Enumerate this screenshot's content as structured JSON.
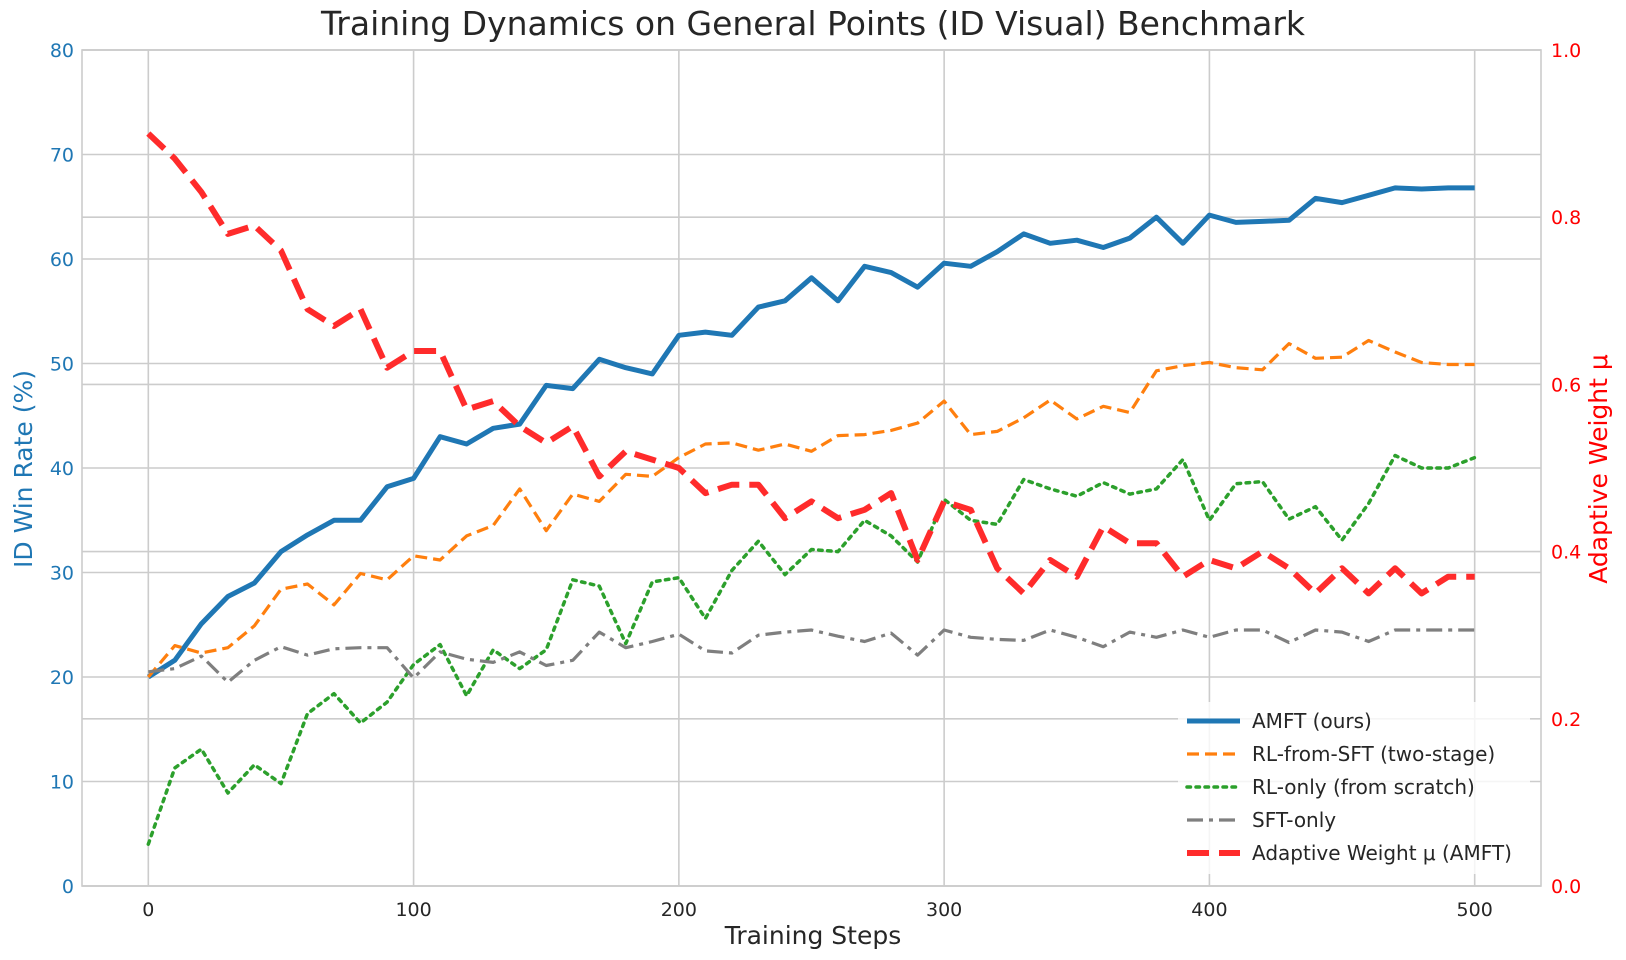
{
  "chart_data": {
    "type": "line",
    "title": "Training Dynamics on General Points (ID Visual) Benchmark",
    "xlabel": "Training Steps",
    "ylabel": "ID Win Rate (%)",
    "y2label": "Adaptive Weight μ",
    "xlim": [
      -25,
      525
    ],
    "ylim": [
      0,
      80
    ],
    "y2lim": [
      0.0,
      1.0
    ],
    "xticks": [
      "0",
      "100",
      "200",
      "300",
      "400",
      "500"
    ],
    "yticks": [
      "0",
      "10",
      "20",
      "30",
      "40",
      "50",
      "60",
      "70",
      "80"
    ],
    "y2ticks": [
      "0.0",
      "0.2",
      "0.4",
      "0.6",
      "0.8",
      "1.0"
    ],
    "grid": true,
    "legend_position": "lower-right",
    "x": [
      0,
      10,
      20,
      30,
      40,
      50,
      60,
      70,
      80,
      90,
      100,
      110,
      120,
      130,
      140,
      150,
      160,
      170,
      180,
      190,
      200,
      210,
      220,
      230,
      240,
      250,
      260,
      270,
      280,
      290,
      300,
      310,
      320,
      330,
      340,
      350,
      360,
      370,
      380,
      390,
      400,
      410,
      420,
      430,
      440,
      450,
      460,
      470,
      480,
      490,
      500
    ],
    "series": [
      {
        "name": "AMFT (ours)",
        "axis": "left",
        "color": "#1f77b4",
        "style": "solid",
        "values": [
          20.0,
          21.6,
          25.1,
          27.7,
          29.0,
          32.0,
          33.6,
          35.0,
          35.0,
          38.2,
          39.0,
          43.0,
          42.3,
          43.8,
          44.2,
          47.9,
          47.6,
          50.4,
          49.6,
          49.0,
          52.7,
          53.0,
          52.7,
          55.4,
          56.0,
          58.2,
          56.0,
          59.3,
          58.7,
          57.3,
          59.6,
          59.3,
          60.7,
          62.4,
          61.5,
          61.8,
          61.1,
          62.0,
          64.0,
          61.5,
          64.2,
          63.5,
          63.6,
          63.7,
          65.8,
          65.4,
          66.1,
          66.8,
          66.7,
          66.8,
          66.8
        ]
      },
      {
        "name": "RL-from-SFT (two-stage)",
        "axis": "left",
        "color": "#ff7f0e",
        "style": "dashed",
        "values": [
          20.0,
          23.0,
          22.3,
          22.8,
          24.9,
          28.4,
          28.9,
          26.9,
          29.9,
          29.3,
          31.6,
          31.2,
          33.5,
          34.5,
          38.0,
          34.0,
          37.5,
          36.8,
          39.4,
          39.2,
          41.0,
          42.3,
          42.4,
          41.7,
          42.3,
          41.6,
          43.1,
          43.2,
          43.6,
          44.3,
          46.4,
          43.2,
          43.5,
          44.8,
          46.5,
          44.7,
          45.9,
          45.3,
          49.3,
          49.8,
          50.1,
          49.6,
          49.4,
          51.9,
          50.5,
          50.6,
          52.2,
          51.1,
          50.1,
          49.9,
          49.9
        ]
      },
      {
        "name": "RL-only (from scratch)",
        "axis": "left",
        "color": "#2ca02c",
        "style": "dotted",
        "values": [
          4.0,
          11.3,
          13.1,
          8.9,
          11.6,
          9.8,
          16.5,
          18.4,
          15.6,
          17.6,
          21.2,
          23.1,
          18.2,
          22.6,
          20.8,
          22.6,
          29.3,
          28.7,
          23.2,
          29.1,
          29.5,
          25.6,
          30.2,
          33.0,
          29.8,
          32.2,
          32.0,
          35.0,
          33.5,
          31.0,
          37.0,
          35.0,
          34.6,
          38.9,
          38.0,
          37.3,
          38.6,
          37.5,
          38.0,
          40.8,
          35.0,
          38.5,
          38.7,
          35.1,
          36.3,
          33.1,
          36.6,
          41.2,
          40.0,
          40.0,
          41.0
        ]
      },
      {
        "name": "SFT-only",
        "axis": "left",
        "color": "#7f7f7f",
        "style": "dashdot",
        "values": [
          20.5,
          20.8,
          22.0,
          19.5,
          21.6,
          22.9,
          22.1,
          22.7,
          22.8,
          22.8,
          19.9,
          22.4,
          21.7,
          21.4,
          22.4,
          21.1,
          21.6,
          24.3,
          22.8,
          23.4,
          24.1,
          22.5,
          22.3,
          24.0,
          24.3,
          24.5,
          23.9,
          23.4,
          24.2,
          22.1,
          24.5,
          23.8,
          23.6,
          23.5,
          24.5,
          23.8,
          22.9,
          24.3,
          23.8,
          24.5,
          23.8,
          24.5,
          24.5,
          23.3,
          24.5,
          24.3,
          23.4,
          24.5,
          24.5,
          24.5,
          24.5
        ]
      },
      {
        "name": "Adaptive Weight μ (AMFT)",
        "axis": "right",
        "color": "#ff2b2b",
        "style": "dashed-thick",
        "values": [
          0.9,
          0.87,
          0.83,
          0.78,
          0.79,
          0.76,
          0.69,
          0.67,
          0.69,
          0.62,
          0.64,
          0.64,
          0.57,
          0.58,
          0.55,
          0.53,
          0.55,
          0.49,
          0.52,
          0.51,
          0.5,
          0.47,
          0.48,
          0.48,
          0.44,
          0.46,
          0.44,
          0.45,
          0.47,
          0.39,
          0.46,
          0.45,
          0.38,
          0.35,
          0.39,
          0.37,
          0.43,
          0.41,
          0.41,
          0.37,
          0.39,
          0.38,
          0.4,
          0.38,
          0.35,
          0.38,
          0.35,
          0.38,
          0.35,
          0.37,
          0.37
        ]
      }
    ]
  }
}
